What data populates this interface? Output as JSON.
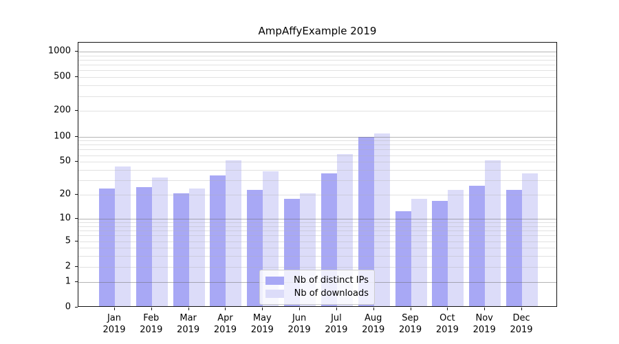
{
  "title": "AmpAffyExample 2019",
  "chart_data": {
    "type": "bar",
    "title": "AmpAffyExample 2019",
    "categories": [
      "Jan",
      "Feb",
      "Mar",
      "Apr",
      "May",
      "Jun",
      "Jul",
      "Aug",
      "Sep",
      "Oct",
      "Nov",
      "Dec"
    ],
    "category_year": "2019",
    "series": [
      {
        "name": "Nb of distinct IPs",
        "color": "#a8a8f5",
        "values": [
          23,
          24,
          20,
          33,
          22,
          17,
          35,
          95,
          12,
          16,
          25,
          22
        ]
      },
      {
        "name": "Nb of downloads",
        "color": "#dcdcf9",
        "values": [
          42,
          31,
          23,
          50,
          37,
          20,
          60,
          104,
          17,
          22,
          50,
          35
        ]
      }
    ],
    "yscale": "log1p",
    "ytick_values": [
      0,
      1,
      2,
      5,
      10,
      20,
      50,
      100,
      200,
      500,
      1000
    ],
    "grid_major_values": [
      1,
      10,
      100,
      1000
    ],
    "ylim": [
      0,
      1270
    ],
    "xlabel": "",
    "ylabel": "",
    "grid": "horizontal major+minor, drawn over bars",
    "legend_position": "lower center"
  },
  "colors": {
    "background": "#ffffff",
    "axis_frame": "#111111",
    "major_grid": "#b5b5b5",
    "minor_grid": "#e8e8e8",
    "legend_border": "#cccccc"
  }
}
